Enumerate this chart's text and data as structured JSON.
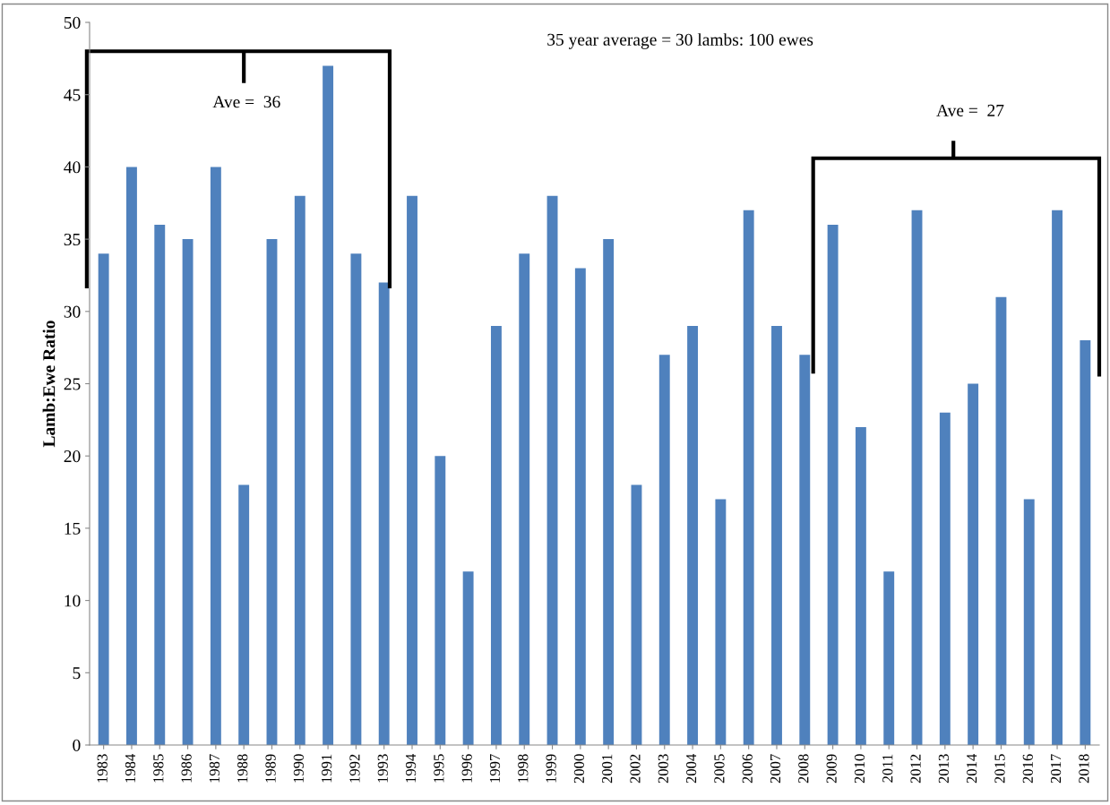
{
  "chart_data": {
    "type": "bar",
    "ylabel": "Lamb:Ewe Ratio",
    "categories": [
      "1983",
      "1984",
      "1985",
      "1986",
      "1987",
      "1988",
      "1989",
      "1990",
      "1991",
      "1992",
      "1993",
      "1994",
      "1995",
      "1996",
      "1997",
      "1998",
      "1999",
      "2000",
      "2001",
      "2002",
      "2003",
      "2004",
      "2005",
      "2006",
      "2007",
      "2008",
      "2009",
      "2010",
      "2011",
      "2012",
      "2013",
      "2014",
      "2015",
      "2016",
      "2017",
      "2018"
    ],
    "values": [
      34,
      40,
      36,
      35,
      40,
      18,
      35,
      38,
      47,
      34,
      32,
      38,
      20,
      12,
      29,
      34,
      38,
      33,
      35,
      18,
      27,
      29,
      17,
      37,
      29,
      27,
      36,
      22,
      12,
      37,
      23,
      25,
      31,
      17,
      37,
      28
    ],
    "color": "#4f81bd",
    "ylim": [
      0,
      50
    ],
    "yticks": [
      0,
      5,
      10,
      15,
      20,
      25,
      30,
      35,
      40,
      45,
      50
    ],
    "grid": false,
    "legend": false,
    "annotations": [
      "35 year average = 30 lambs: 100 ewes",
      "Ave =  36",
      "Ave =  27"
    ]
  }
}
